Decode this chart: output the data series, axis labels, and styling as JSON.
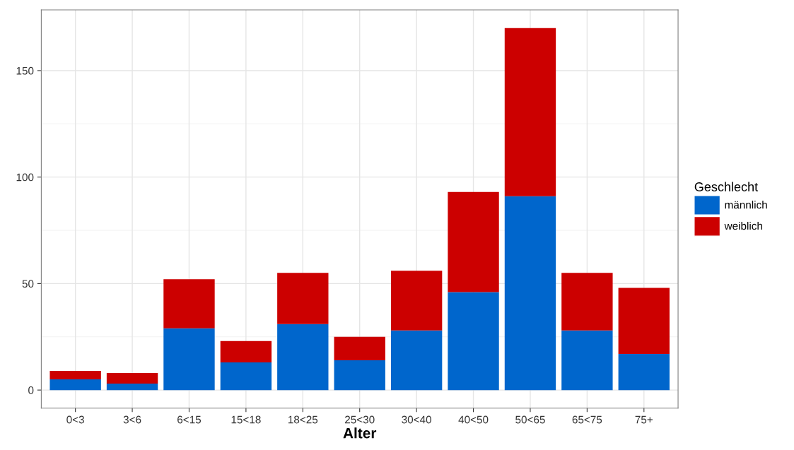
{
  "chart_data": {
    "type": "bar",
    "stacked": true,
    "xlabel": "Alter",
    "legend_title": "Geschlecht",
    "categories": [
      "0<3",
      "3<6",
      "6<15",
      "15<18",
      "18<25",
      "25<30",
      "30<40",
      "40<50",
      "50<65",
      "65<75",
      "75+"
    ],
    "series": [
      {
        "name": "männlich",
        "color": "#0066cc",
        "values": [
          5,
          3,
          29,
          13,
          31,
          14,
          28,
          46,
          91,
          28,
          17
        ]
      },
      {
        "name": "weiblich",
        "color": "#cc0000",
        "values": [
          4,
          5,
          23,
          10,
          24,
          11,
          28,
          47,
          79,
          27,
          31
        ]
      }
    ],
    "ylim": [
      -8.5,
      178.5
    ],
    "yticks": [
      0,
      50,
      100,
      150
    ],
    "grid": true,
    "legend": "right"
  }
}
